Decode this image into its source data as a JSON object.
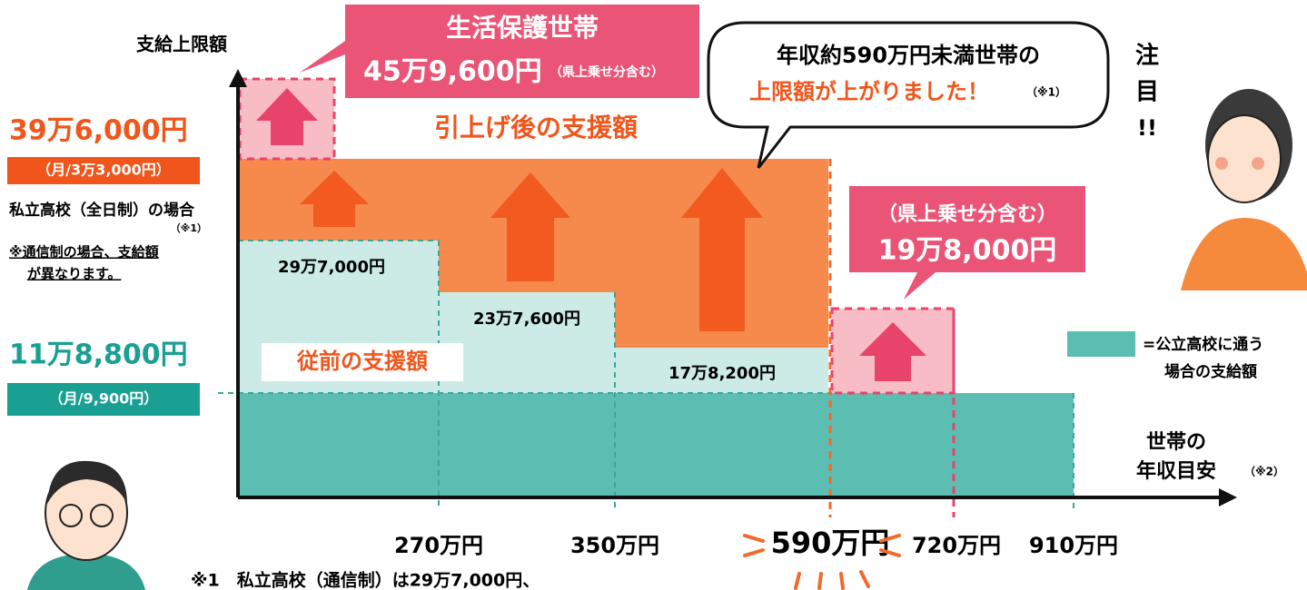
{
  "axis": {
    "y_label": "支給上限額",
    "x_label_1": "世帯の",
    "x_label_2": "年収目安",
    "x_note": "（※2）",
    "x_ticks": [
      "270万円",
      "350万円",
      "590万円",
      "720万円",
      "910万円"
    ]
  },
  "private": {
    "amount": "39万6,000円",
    "monthly": "（月/3万3,000円）",
    "case": "私立高校（全日制）の場合",
    "case_note": "（※1）",
    "note_1": "※通信制の場合、支給額",
    "note_2": "が異なります。"
  },
  "public": {
    "amount": "11万8,800円",
    "monthly": "（月/9,900円）",
    "legend_1": "=公立高校に通う",
    "legend_2": "場合の支給額"
  },
  "welfare": {
    "title": "生活保護世帯",
    "amount": "45万9,600円",
    "note": "（県上乗せ分含む）"
  },
  "bubble": {
    "line_1": "年収約590万円未満世帯の",
    "line_2": "上限額が上がりました！",
    "note": "（※1）"
  },
  "bands": {
    "after": "引上げ後の支援額",
    "before": "従前の支援額",
    "step_1": "29万7,000円",
    "step_2": "23万7,600円",
    "step_3": "17万8,200円"
  },
  "extra": {
    "note": "（県上乗せ分含む）",
    "amount": "19万8,000円"
  },
  "attention": [
    "注",
    "目",
    "!!"
  ],
  "footnote": "※1　私立高校（通信制）は29万7,000円、"
}
